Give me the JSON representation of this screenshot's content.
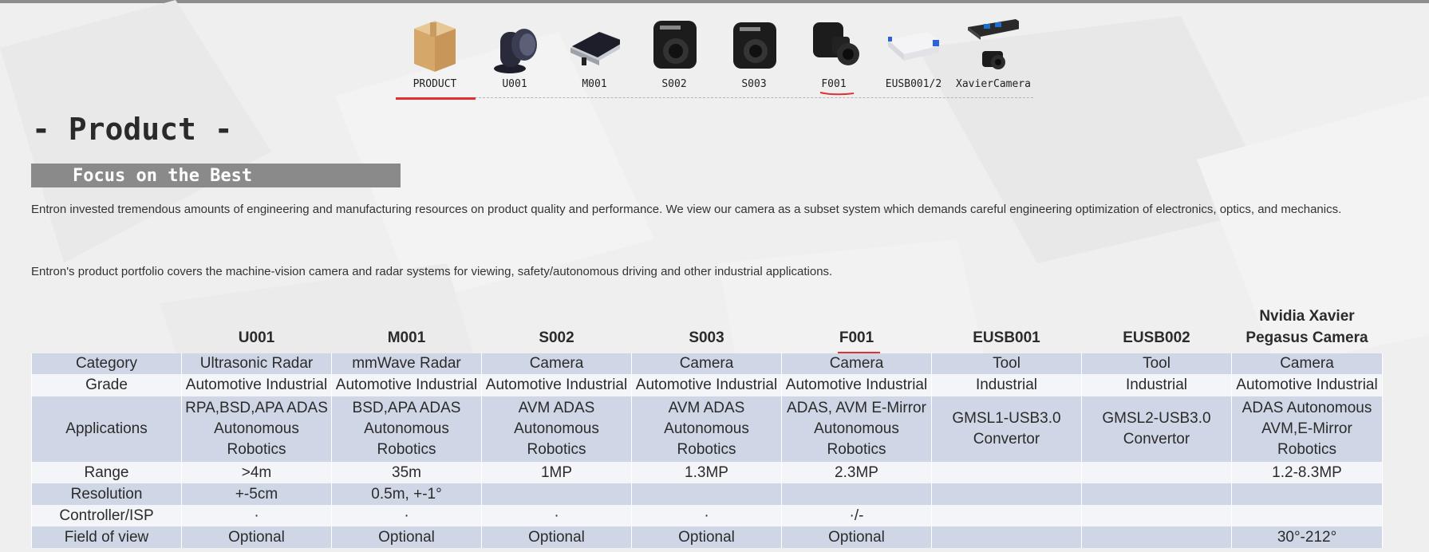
{
  "nav": {
    "items": [
      {
        "label": "PRODUCT",
        "icon": "box-icon"
      },
      {
        "label": "U001",
        "icon": "ultrasonic-sensor-icon"
      },
      {
        "label": "M001",
        "icon": "radar-module-icon"
      },
      {
        "label": "S002",
        "icon": "camera-icon"
      },
      {
        "label": "S003",
        "icon": "camera-icon"
      },
      {
        "label": "F001",
        "icon": "camera-icon"
      },
      {
        "label": "EUSB001/2",
        "icon": "usb-converter-icon"
      },
      {
        "label": "XavierCamera",
        "icon": "board-camera-icon"
      }
    ],
    "active_color": "#e03131"
  },
  "page": {
    "title": "- Product -",
    "banner": "Focus on the Best",
    "para1": "Entron invested tremendous amounts of engineering and manufacturing resources on product quality and performance. We view our camera as a subset system which demands careful engineering optimization of electronics, optics, and mechanics.",
    "para2": "Entron's product portfolio covers the machine-vision camera and radar systems for viewing, safety/autonomous driving and other industrial applications."
  },
  "table": {
    "headers": [
      "",
      "U001",
      "M001",
      "S002",
      "S003",
      "F001",
      "EUSB001",
      "EUSB002",
      "Nvidia Xavier Pegasus Camera"
    ],
    "rows": [
      [
        "Category",
        "Ultrasonic Radar",
        "mmWave Radar",
        "Camera",
        "Camera",
        "Camera",
        "Tool",
        "Tool",
        "Camera"
      ],
      [
        "Grade",
        "Automotive Industrial",
        "Automotive Industrial",
        "Automotive Industrial",
        "Automotive Industrial",
        "Automotive Industrial",
        "Industrial",
        "Industrial",
        "Automotive Industrial"
      ],
      [
        "Applications",
        "RPA,BSD,APA ADAS Autonomous Robotics",
        "BSD,APA ADAS Autonomous Robotics",
        "AVM ADAS Autonomous Robotics",
        "AVM ADAS Autonomous Robotics",
        "ADAS, AVM E-Mirror Autonomous Robotics",
        "GMSL1-USB3.0 Convertor",
        "GMSL2-USB3.0 Convertor",
        "ADAS Autonomous AVM,E-Mirror Robotics"
      ],
      [
        "Range",
        ">4m",
        "35m",
        "1MP",
        "1.3MP",
        "2.3MP",
        "",
        "",
        "1.2-8.3MP"
      ],
      [
        "Resolution",
        "+-5cm",
        "0.5m, +-1°",
        "",
        "",
        "",
        "",
        "",
        ""
      ],
      [
        "Controller/ISP",
        "·",
        "·",
        "·",
        "·",
        "·/-",
        "",
        "",
        ""
      ],
      [
        "Field of view",
        "Optional",
        "Optional",
        "Optional",
        "Optional",
        "Optional",
        "",
        "",
        "30°-212°"
      ]
    ],
    "colors": {
      "dark_row": "#cfd7e6",
      "light_row": "#f4f5f8"
    }
  }
}
